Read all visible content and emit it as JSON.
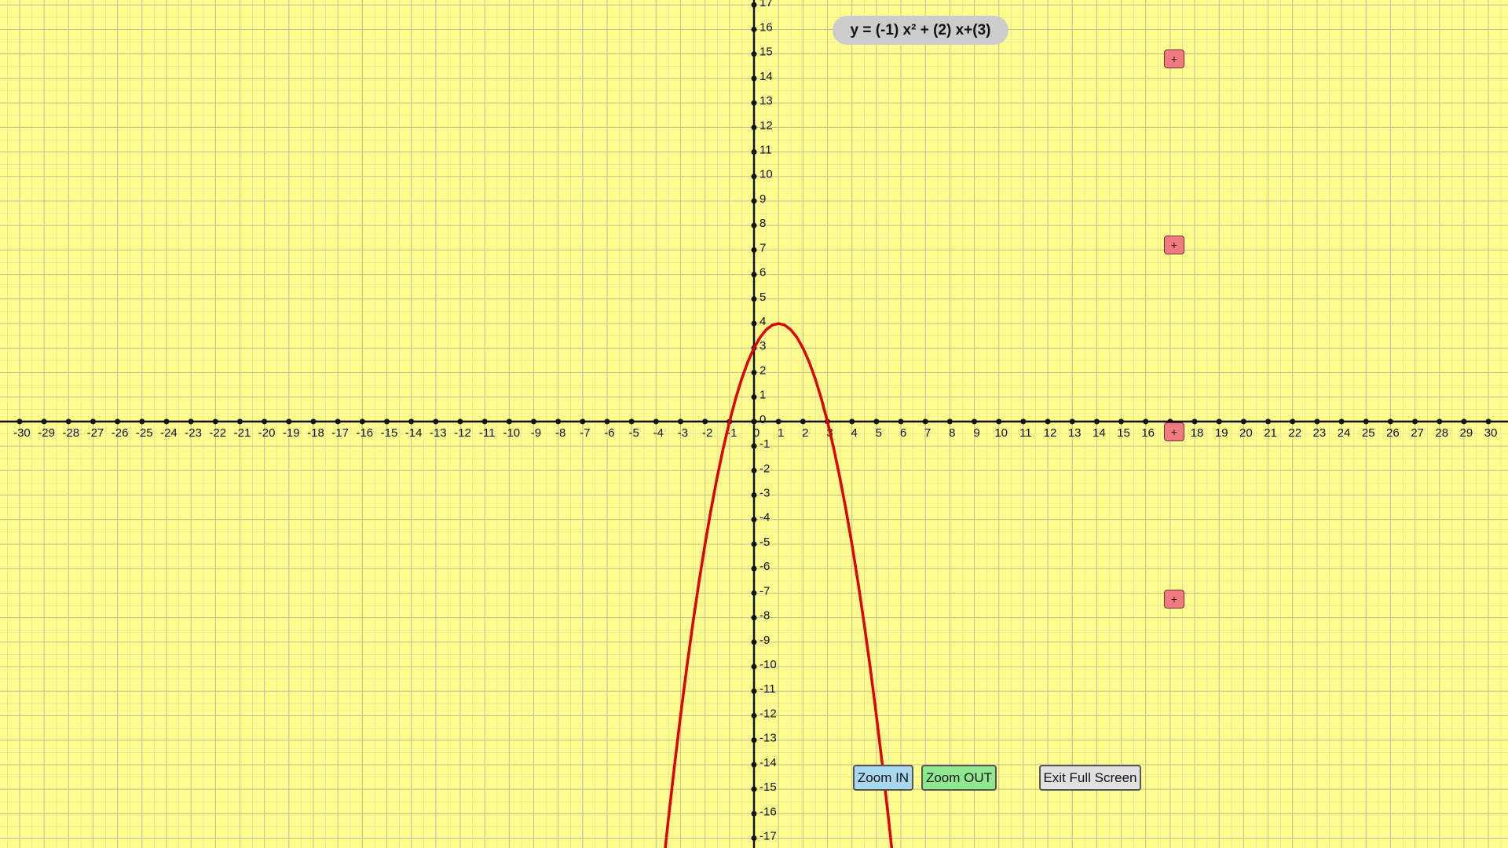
{
  "equation": "y = (-1) x² + (2) x+(3)",
  "buttons": {
    "zoom_in": "Zoom IN",
    "zoom_out": "Zoom OUT",
    "exit_full_screen": "Exit Full Screen",
    "add": [
      "+",
      "+",
      "+",
      "+"
    ]
  },
  "chart_data": {
    "type": "line",
    "xlim": [
      -30.8,
      30.8
    ],
    "ylim": [
      -17.4,
      17.2
    ],
    "xticks": [
      -30,
      -29,
      -28,
      -27,
      -26,
      -25,
      -24,
      -23,
      -22,
      -21,
      -20,
      -19,
      -18,
      -17,
      -16,
      -15,
      -14,
      -13,
      -12,
      -11,
      -10,
      -9,
      -8,
      -7,
      -6,
      -5,
      -4,
      -3,
      -2,
      -1,
      0,
      1,
      2,
      3,
      4,
      5,
      6,
      7,
      8,
      9,
      10,
      11,
      12,
      13,
      14,
      15,
      16,
      17,
      18,
      19,
      20,
      21,
      22,
      23,
      24,
      25,
      26,
      27,
      28,
      29,
      30
    ],
    "yticks": [
      -17,
      -16,
      -15,
      -14,
      -13,
      -12,
      -11,
      -10,
      -9,
      -8,
      -7,
      -6,
      -5,
      -4,
      -3,
      -2,
      -1,
      0,
      1,
      2,
      3,
      4,
      5,
      6,
      7,
      8,
      9,
      10,
      11,
      12,
      13,
      14,
      15,
      16,
      17
    ],
    "grid": true,
    "series": [
      {
        "color": "#e50000",
        "x": [
          -3.75,
          -3.5,
          -3.25,
          -3,
          -2.75,
          -2.5,
          -2.25,
          -2,
          -1.75,
          -1.5,
          -1.25,
          -1,
          -0.75,
          -0.5,
          -0.25,
          0,
          0.25,
          0.5,
          0.75,
          1,
          1.25,
          1.5,
          1.75,
          2,
          2.25,
          2.5,
          2.75,
          3,
          3.25,
          3.5,
          3.75,
          4,
          4.25,
          4.5,
          4.75,
          5,
          5.25,
          5.5,
          5.75
        ],
        "values": [
          -18.5625,
          -16.25,
          -14.0625,
          -12,
          -10.0625,
          -8.25,
          -6.5625,
          -5,
          -3.5625,
          -2.25,
          -1.0625,
          0,
          0.9375,
          1.75,
          2.4375,
          3,
          3.4375,
          3.75,
          3.9375,
          4,
          3.9375,
          3.75,
          3.4375,
          3,
          2.4375,
          1.75,
          0.9375,
          0,
          -1.0625,
          -2.25,
          -3.5625,
          -5,
          -6.5625,
          -8.25,
          -10.0625,
          -12,
          -14.0625,
          -16.25,
          -18.5625
        ]
      }
    ]
  }
}
